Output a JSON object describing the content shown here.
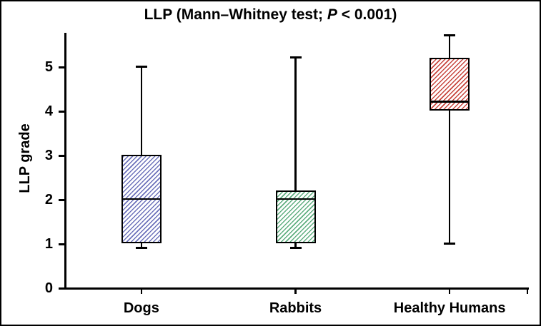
{
  "chart_data": {
    "type": "box",
    "title": "LLP (Mann–Whitney test; P < 0.001)",
    "title_parts": {
      "prefix": "LLP (Mann–Whitney test; ",
      "italic": "P",
      "suffix": " < 0.001)"
    },
    "ylabel": "LLP grade",
    "xlabel": "",
    "categories": [
      "Dogs",
      "Rabbits",
      "Healthy Humans"
    ],
    "yticks": [
      0,
      1,
      2,
      3,
      4,
      5
    ],
    "ylim": [
      0,
      5.75
    ],
    "grid": false,
    "legend": "none",
    "series": [
      {
        "name": "Dogs",
        "whisker_low": 0.9,
        "q1": 1.0,
        "median": 2.0,
        "q3": 3.0,
        "whisker_high": 5.0,
        "hatch": "diagonal",
        "hatch_color": "#6b70ba"
      },
      {
        "name": "Rabbits",
        "whisker_low": 0.9,
        "q1": 1.0,
        "median": 2.0,
        "q3": 2.2,
        "whisker_high": 5.2,
        "hatch": "diagonal",
        "hatch_color": "#5fae7f"
      },
      {
        "name": "Healthy Humans",
        "whisker_low": 1.0,
        "q1": 4.0,
        "median": 4.2,
        "q3": 5.2,
        "whisker_high": 5.7,
        "hatch": "diagonal",
        "hatch_color": "#c7443c"
      }
    ],
    "colors": {
      "axis": "#000000",
      "text": "#000000",
      "background": "#ffffff",
      "frame_border": "#000000"
    }
  }
}
